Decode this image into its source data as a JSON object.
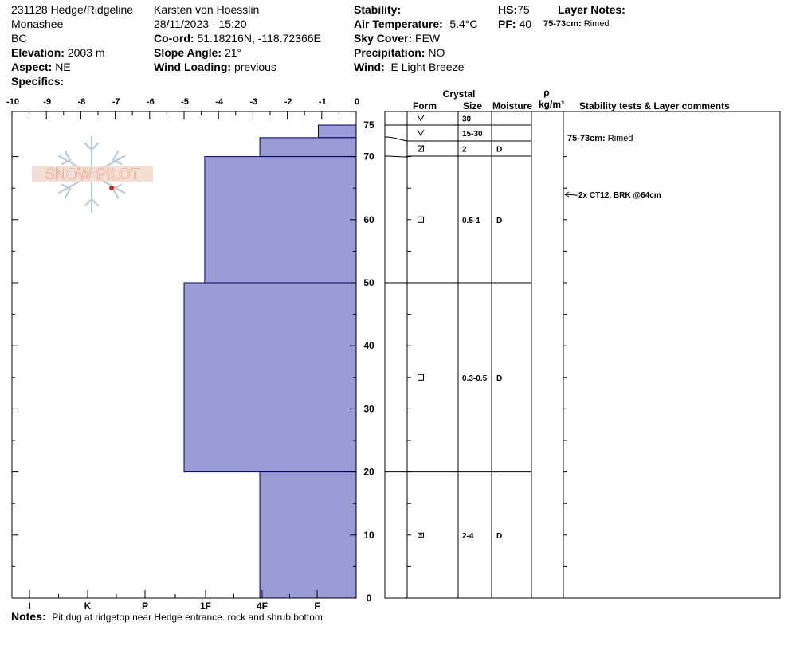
{
  "header": {
    "col1": {
      "site": "231128 Hedge/Ridgeline",
      "range": "Monashee",
      "region": "BC",
      "elevation_label": "Elevation:",
      "elevation": "2003 m",
      "aspect_label": "Aspect:",
      "aspect": "NE",
      "specifics_label": "Specifics:",
      "specifics": ""
    },
    "col2": {
      "observer": "Karsten  von Hoesslin",
      "datetime": "28/11/2023 - 15:20",
      "coord_label": "Co-ord:",
      "coord": "51.18216N, -118.72366E",
      "slope_label": "Slope Angle:",
      "slope": "21°",
      "wind_loading_label": "Wind Loading:",
      "wind_loading": "previous"
    },
    "col3": {
      "stability_label": "Stability:",
      "stability": "",
      "air_temp_label": "Air Temperature:",
      "air_temp": "-5.4°C",
      "sky_label": "Sky Cover:",
      "sky": "FEW",
      "precip_label": "Precipitation:",
      "precip": "NO",
      "wind_label": "Wind:",
      "wind": "E Light Breeze"
    },
    "col4": {
      "hs_label": "HS:",
      "hs": "75",
      "pf_label": "PF:",
      "pf": "40"
    },
    "layer_notes": {
      "title": "Layer Notes:",
      "items": [
        {
          "range": "75-73cm:",
          "text": "Rimed"
        }
      ]
    }
  },
  "logo": {
    "text": "SNOW PILOT"
  },
  "table": {
    "header_crystal": "Crystal",
    "header_form": "Form",
    "header_size": "Size",
    "header_moisture": "Moisture",
    "header_rho": "ρ",
    "header_density": "kg/m³",
    "header_comments": "Stability tests & Layer comments"
  },
  "chart_data": {
    "type": "snow-profile",
    "x_axis_top": {
      "min": -10,
      "max": 0,
      "ticks": [
        -10,
        -9,
        -8,
        -7,
        -6,
        -5,
        -4,
        -3,
        -2,
        -1,
        0
      ]
    },
    "hardness_labels": [
      "I",
      "K",
      "P",
      "1F",
      "4F",
      "F"
    ],
    "depth_axis": {
      "min": 0,
      "max": 75,
      "ticks": [
        0,
        10,
        20,
        30,
        40,
        50,
        60,
        70,
        75
      ]
    },
    "hardness_layers": [
      {
        "top": 75,
        "bottom": 73,
        "value": -1.1
      },
      {
        "top": 73,
        "bottom": 70,
        "value": -2.8
      },
      {
        "top": 70,
        "bottom": 50,
        "value": -4.4
      },
      {
        "top": 50,
        "bottom": 20,
        "value": -5.0
      },
      {
        "top": 20,
        "bottom": 0,
        "value": -2.8
      }
    ],
    "crystal_layers": [
      {
        "top": 75,
        "bottom": 73,
        "form": "precip",
        "size": "30",
        "moisture": ""
      },
      {
        "top": 73,
        "bottom": 70.5,
        "form": "precip",
        "size": "15-30",
        "moisture": ""
      },
      {
        "top": 70.5,
        "bottom": 70,
        "form": "rounding-faceted",
        "size": "2",
        "moisture": "D"
      },
      {
        "top": 70,
        "bottom": 50,
        "form": "faceted",
        "size": "0.5-1",
        "moisture": "D"
      },
      {
        "top": 50,
        "bottom": 20,
        "form": "faceted",
        "size": "0.3-0.5",
        "moisture": "D"
      },
      {
        "top": 20,
        "bottom": 0,
        "form": "depth-hoar",
        "size": "2-4",
        "moisture": "D"
      }
    ],
    "comments": [
      {
        "depth": 73,
        "text_label": "75-73cm:",
        "text": "Rimed"
      },
      {
        "depth": 64,
        "text": "2x CT12, BRK @64cm"
      }
    ],
    "colors": {
      "hardness_fill": "#9b9bd6",
      "hardness_stroke": "#00006e"
    }
  },
  "notes": {
    "label": "Notes:",
    "text": "Pit dug at ridgetop near Hedge entrance. rock and shrub bottom"
  }
}
